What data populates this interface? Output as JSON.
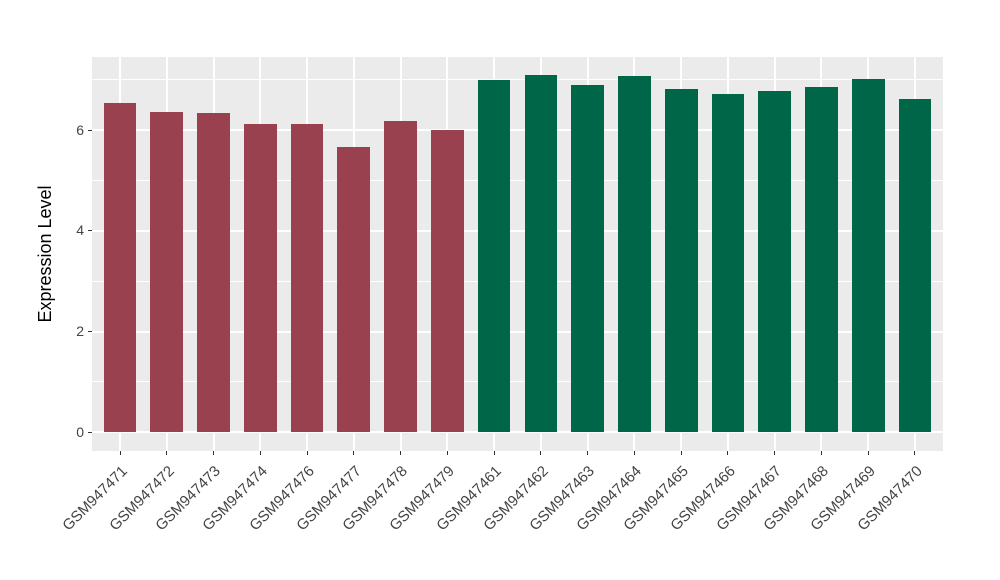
{
  "chart_data": {
    "type": "bar",
    "ylabel": "Expression Level",
    "categories": [
      "GSM947471",
      "GSM947472",
      "GSM947473",
      "GSM947474",
      "GSM947476",
      "GSM947477",
      "GSM947478",
      "GSM947479",
      "GSM947461",
      "GSM947462",
      "GSM947463",
      "GSM947464",
      "GSM947465",
      "GSM947466",
      "GSM947467",
      "GSM947468",
      "GSM947469",
      "GSM947470"
    ],
    "values": [
      6.53,
      6.35,
      6.33,
      6.13,
      6.12,
      5.66,
      6.17,
      6.01,
      6.99,
      7.09,
      6.89,
      7.07,
      6.82,
      6.71,
      6.77,
      6.86,
      7.02,
      6.61
    ],
    "groups": [
      "maroon",
      "maroon",
      "maroon",
      "maroon",
      "maroon",
      "maroon",
      "maroon",
      "maroon",
      "green",
      "green",
      "green",
      "green",
      "green",
      "green",
      "green",
      "green",
      "green",
      "green"
    ],
    "group_colors": {
      "maroon": "#9A4150",
      "green": "#006648"
    },
    "yticks": [
      0,
      2,
      4,
      6
    ],
    "yticks_minor": [
      1,
      3,
      5,
      7
    ],
    "ylim": [
      -0.37,
      7.45
    ],
    "xlim": [
      0.4,
      18.6
    ],
    "bar_width": 0.7,
    "grid": true,
    "legend_position": "none",
    "panel_bg": "#EBEBEB",
    "grid_color": "#FFFFFF",
    "axis_text_color": "#444444",
    "axis_title_color": "#000000",
    "tick_mark_color": "#333333"
  }
}
